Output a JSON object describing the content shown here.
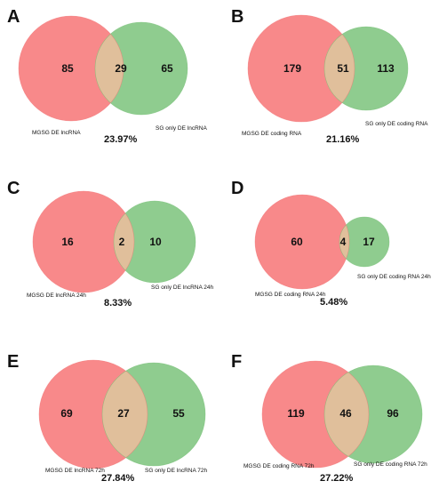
{
  "colors": {
    "left_fill": "#f8898a",
    "right_fill": "#8fcc8f",
    "overlap_fill": "#e0bf9b",
    "left_stroke": "#f06f71",
    "right_stroke": "#6dbb6d"
  },
  "panels": [
    {
      "letter": "A",
      "left_count": "85",
      "overlap_count": "29",
      "right_count": "65",
      "left_label": "MGSG DE lncRNA",
      "right_label": "SG only DE lncRNA",
      "percent": "23.97%"
    },
    {
      "letter": "B",
      "left_count": "179",
      "overlap_count": "51",
      "right_count": "113",
      "left_label": "MGSG DE coding RNA",
      "right_label": "SG only DE coding RNA",
      "percent": "21.16%"
    },
    {
      "letter": "C",
      "left_count": "16",
      "overlap_count": "2",
      "right_count": "10",
      "left_label": "MGSG DE lncRNA 24h",
      "right_label": "SG only DE lncRNA 24h",
      "percent": "8.33%"
    },
    {
      "letter": "D",
      "left_count": "60",
      "overlap_count": "4",
      "right_count": "17",
      "left_label": "MGSG DE coding RNA 24h",
      "right_label": "SG only DE coding RNA 24h",
      "percent": "5.48%"
    },
    {
      "letter": "E",
      "left_count": "69",
      "overlap_count": "27",
      "right_count": "55",
      "left_label": "MGSG DE lncRNA 72h",
      "right_label": "SG only DE lncRNA 72h",
      "percent": "27.84%"
    },
    {
      "letter": "F",
      "left_count": "119",
      "overlap_count": "46",
      "right_count": "96",
      "left_label": "MGSG DE coding RNA 72h",
      "right_label": "SG only DE coding RNA 72h",
      "percent": "27.22%"
    }
  ]
}
